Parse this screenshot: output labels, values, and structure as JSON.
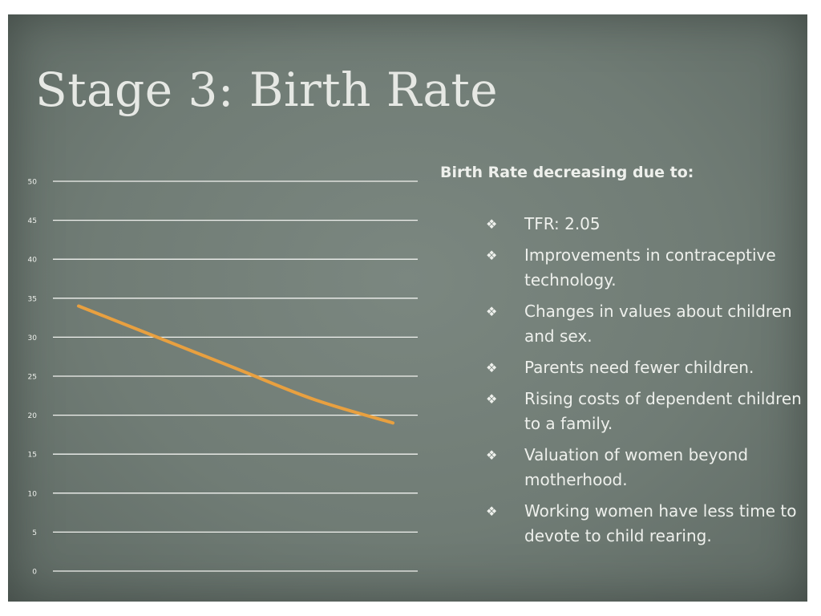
{
  "slide": {
    "title": "Stage 3: Birth Rate",
    "bullet_header": "Birth Rate decreasing due to:",
    "bullet_glyph": "❖",
    "bullets": [
      "TFR: 2.05",
      "Improvements in contraceptive technology.",
      "Changes in values about children and sex.",
      "Parents need fewer children.",
      "Rising costs of dependent children to a family.",
      "Valuation of women beyond motherhood.",
      "Working women have less time to devote to child rearing."
    ]
  },
  "chart_data": {
    "type": "line",
    "title": "",
    "xlabel": "",
    "ylabel": "",
    "ylim": [
      0,
      50
    ],
    "yticks": [
      0,
      5,
      10,
      15,
      20,
      25,
      30,
      35,
      40,
      45,
      50
    ],
    "xlim": [
      0,
      1
    ],
    "grid": true,
    "series": [
      {
        "name": "",
        "color": "#e8a040",
        "x": [
          0,
          0.25,
          0.5,
          0.75,
          1
        ],
        "values": [
          34,
          30,
          26,
          22,
          19
        ]
      }
    ]
  },
  "colors": {
    "background": "#707c75",
    "gridline": "#f2f3f0",
    "text": "#eef0ec",
    "line": "#e8a040"
  }
}
